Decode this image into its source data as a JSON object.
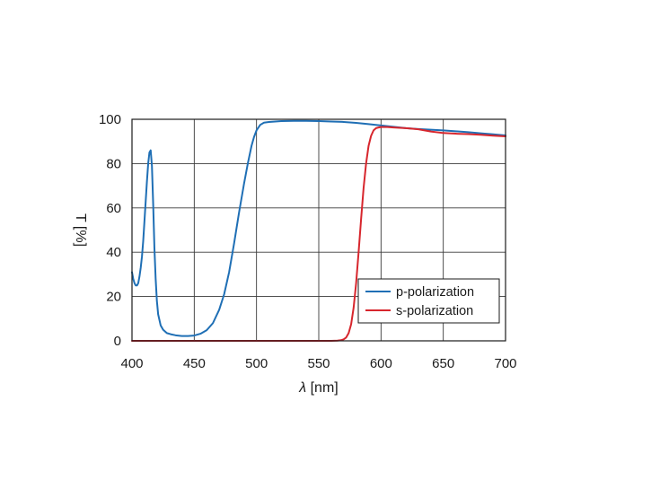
{
  "chart_data": {
    "type": "line",
    "title": "",
    "xlabel_italic": "λ",
    "xlabel_rest": " [nm]",
    "ylabel": "T [%]",
    "xlim": [
      400,
      700
    ],
    "ylim": [
      0,
      100
    ],
    "x_ticks": [
      400,
      450,
      500,
      550,
      600,
      650,
      700
    ],
    "y_ticks": [
      0,
      20,
      40,
      60,
      80,
      100
    ],
    "grid": true,
    "legend_position": "bottom-right",
    "series": [
      {
        "name": "p-polarization",
        "color": "#1f6fb5",
        "x": [
          400,
          401,
          402,
          403,
          404,
          405,
          406,
          407,
          408,
          409,
          410,
          411,
          412,
          413,
          414,
          415,
          416,
          417,
          418,
          419,
          420,
          421,
          423,
          425,
          428,
          431,
          435,
          440,
          445,
          450,
          455,
          460,
          465,
          470,
          474,
          478,
          482,
          486,
          490,
          493,
          496,
          498,
          500,
          503,
          506,
          510,
          515,
          520,
          530,
          540,
          550,
          560,
          570,
          580,
          590,
          600,
          610,
          620,
          630,
          640,
          650,
          660,
          670,
          680,
          690,
          700
        ],
        "y": [
          31,
          28,
          26,
          25,
          25,
          26,
          29,
          33,
          38,
          45,
          54,
          63,
          72,
          80,
          85,
          86,
          79,
          62,
          42,
          28,
          18,
          12,
          7,
          5,
          3.5,
          3,
          2.5,
          2.2,
          2.2,
          2.4,
          3.2,
          4.8,
          8,
          14,
          21,
          31,
          44,
          58,
          71,
          80,
          88,
          92,
          95,
          97.5,
          98.5,
          98.8,
          99,
          99.2,
          99.3,
          99.3,
          99.2,
          99,
          98.8,
          98.4,
          97.8,
          97.2,
          96.6,
          96,
          95.6,
          95.3,
          95,
          94.6,
          94.2,
          93.7,
          93.2,
          92.7
        ]
      },
      {
        "name": "s-polarization",
        "color": "#d7262d",
        "x": [
          400,
          450,
          500,
          550,
          560,
          565,
          568,
          570,
          572,
          574,
          576,
          578,
          580,
          582,
          584,
          586,
          588,
          590,
          592,
          594,
          596,
          598,
          600,
          605,
          610,
          620,
          630,
          640,
          650,
          660,
          670,
          680,
          690,
          700
        ],
        "y": [
          0,
          0,
          0,
          0,
          0,
          0.1,
          0.3,
          0.7,
          1.5,
          3.5,
          7.5,
          15,
          26,
          40,
          55,
          69,
          80,
          88,
          92.5,
          95,
          96,
          96.3,
          96.5,
          96.5,
          96.3,
          96,
          95.5,
          94.5,
          93.8,
          93.5,
          93.3,
          93,
          92.6,
          92.3
        ]
      }
    ]
  }
}
